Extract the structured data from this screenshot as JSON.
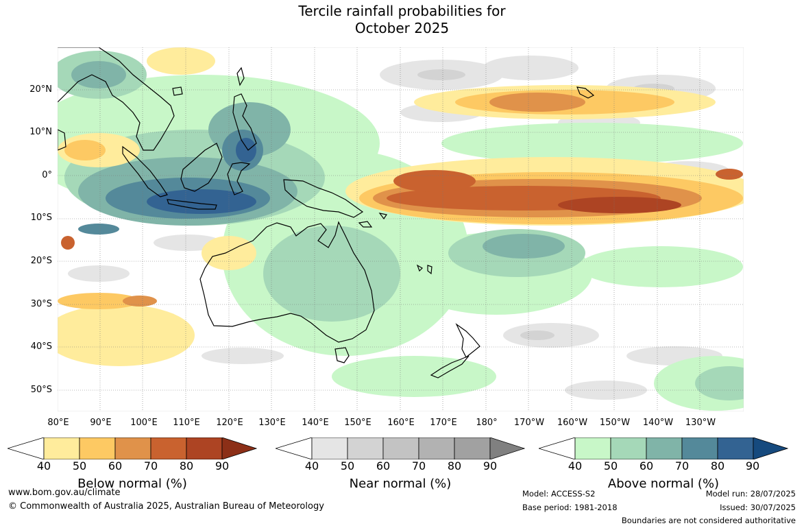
{
  "title": {
    "line1": "Tercile rainfall probabilities for",
    "line2": "October 2025"
  },
  "map": {
    "lat_labels": [
      "20°N",
      "10°N",
      "0°",
      "10°S",
      "20°S",
      "30°S",
      "40°S",
      "50°S"
    ],
    "lon_labels": [
      "80°E",
      "90°E",
      "100°E",
      "110°E",
      "120°E",
      "130°E",
      "140°E",
      "150°E",
      "160°E",
      "170°E",
      "180°",
      "170°W",
      "160°W",
      "150°W",
      "140°W",
      "130°W"
    ],
    "region": "Indo-Pacific, Australia and New Zealand",
    "colors": {
      "below": [
        "#ffffff",
        "#ffec9c",
        "#fdc963",
        "#e0924a",
        "#c9622f",
        "#ad4423",
        "#8c2f17"
      ],
      "near": [
        "#ffffff",
        "#e5e5e5",
        "#d3d3d3",
        "#c3c3c3",
        "#b2b2b2",
        "#a1a1a1",
        "#808080"
      ],
      "above": [
        "#ffffff",
        "#c8f7c8",
        "#a5d8b8",
        "#80b4a8",
        "#54899a",
        "#336392",
        "#164a7e"
      ]
    }
  },
  "legend": {
    "ticks": [
      "40",
      "50",
      "60",
      "70",
      "80",
      "90"
    ],
    "below_label": "Below normal (%)",
    "near_label": "Near normal (%)",
    "above_label": "Above normal (%)"
  },
  "footer": {
    "url": "www.bom.gov.au/climate",
    "copyright": "© Commonwealth of Australia 2025, Australian Bureau of Meteorology",
    "model": "Model: ACCESS-S2",
    "base_period": "Base period: 1981-2018",
    "model_run": "Model run: 28/07/2025",
    "issued": "Issued: 30/07/2025",
    "disclaimer": "Boundaries are not considered authoritative"
  }
}
